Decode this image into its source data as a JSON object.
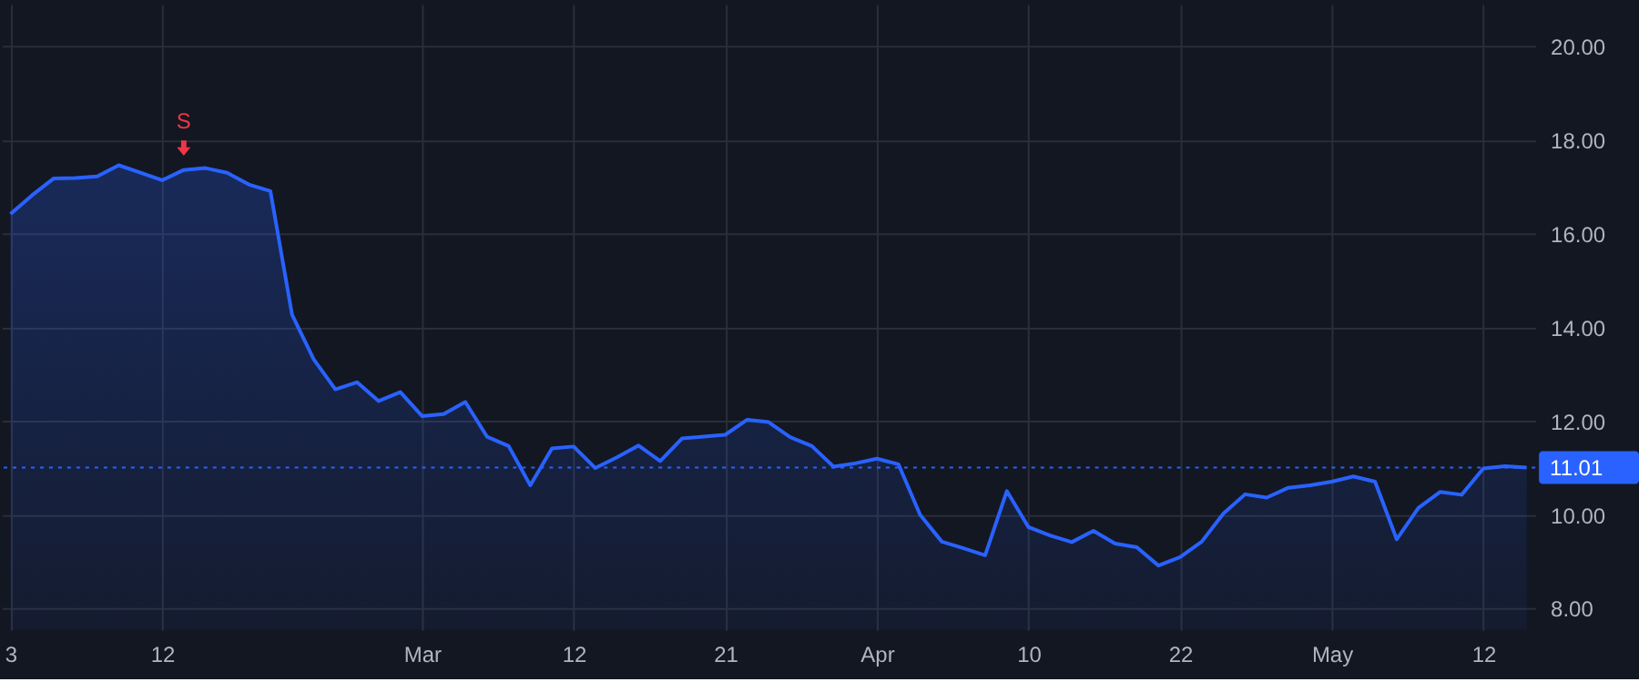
{
  "chart_data": {
    "type": "area",
    "categories": [
      "3",
      null,
      null,
      null,
      null,
      null,
      null,
      "12",
      null,
      null,
      null,
      null,
      null,
      null,
      null,
      null,
      null,
      null,
      null,
      "Mar",
      null,
      null,
      null,
      null,
      null,
      null,
      "12",
      null,
      null,
      null,
      null,
      null,
      null,
      "21",
      null,
      null,
      null,
      null,
      null,
      null,
      "Apr",
      null,
      null,
      null,
      null,
      null,
      null,
      "10",
      null,
      null,
      null,
      null,
      null,
      null,
      "22",
      null,
      null,
      null,
      null,
      null,
      null,
      "May",
      null,
      null,
      null,
      null,
      null,
      null,
      "12",
      null,
      null
    ],
    "series": [
      {
        "color": "#2962ff",
        "values": [
          16.42,
          16.82,
          17.18,
          17.19,
          17.22,
          17.46,
          17.3,
          17.14,
          17.36,
          17.4,
          17.3,
          17.05,
          16.91,
          14.27,
          13.32,
          12.68,
          12.83,
          12.43,
          12.62,
          12.11,
          12.15,
          12.41,
          11.67,
          11.47,
          10.63,
          11.42,
          11.46,
          11.0,
          11.23,
          11.48,
          11.15,
          11.63,
          11.67,
          11.71,
          12.03,
          11.98,
          11.66,
          11.47,
          11.03,
          11.1,
          11.2,
          11.08,
          10.0,
          9.43,
          9.29,
          9.14,
          10.51,
          9.74,
          9.56,
          9.42,
          9.66,
          9.39,
          9.31,
          8.92,
          9.1,
          9.43,
          10.03,
          10.44,
          10.37,
          10.58,
          10.63,
          10.71,
          10.82,
          10.71,
          9.48,
          10.15,
          10.49,
          10.43,
          10.99,
          11.04,
          11.01
        ]
      }
    ],
    "ylim": [
      7.55,
      20.9
    ],
    "yticks": [
      {
        "value": 8,
        "label": "8.00"
      },
      {
        "value": 10,
        "label": "10.00"
      },
      {
        "value": 12,
        "label": "12.00"
      },
      {
        "value": 14,
        "label": "14.00"
      },
      {
        "value": 16,
        "label": "16.00"
      },
      {
        "value": 18,
        "label": "18.00"
      },
      {
        "value": 20,
        "label": "20.00"
      }
    ],
    "ref_lines": [
      {
        "axis": "y",
        "value": 11.01,
        "label": "11.01",
        "color": "#2962ff",
        "line_style": "dotted"
      }
    ],
    "annotations": [
      {
        "text": "S",
        "y": 17.36
      }
    ],
    "grid": true,
    "marker": "none",
    "line_style": "solid"
  }
}
